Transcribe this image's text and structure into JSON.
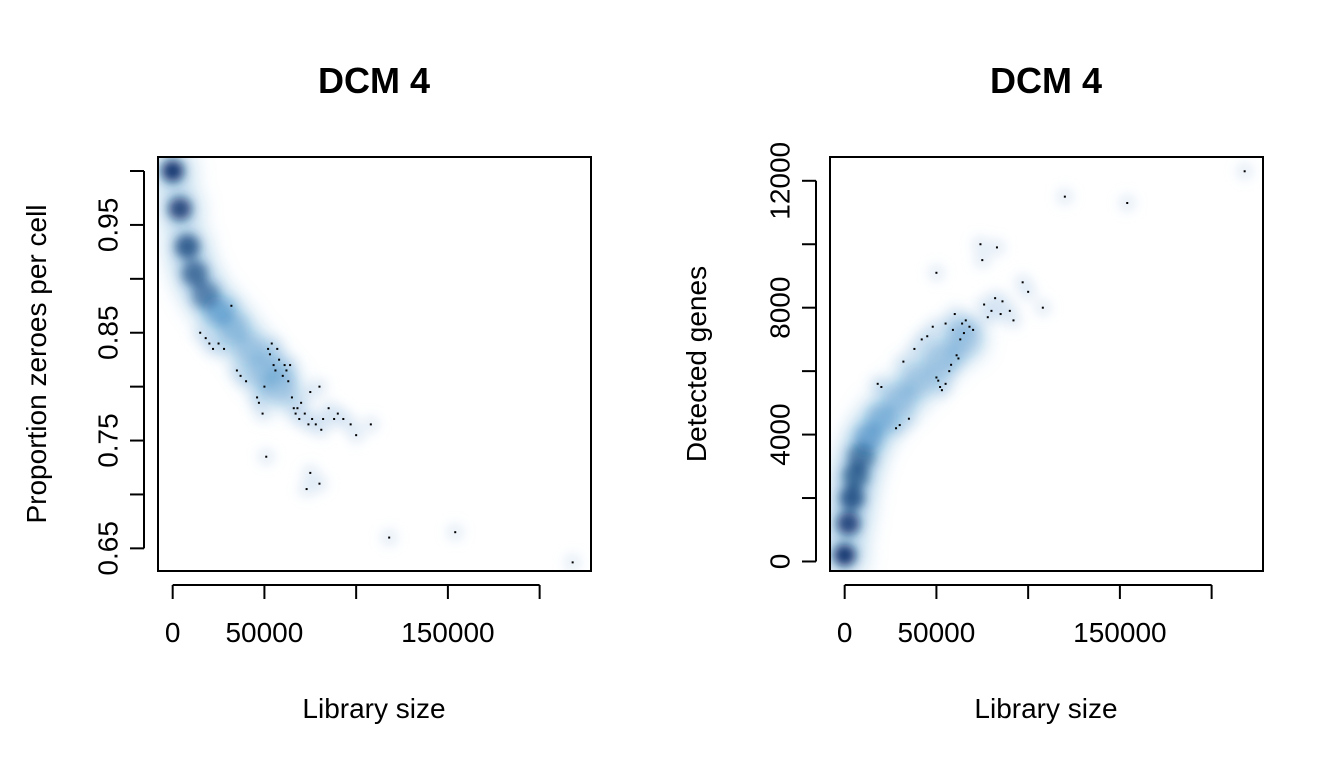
{
  "chart_data": [
    {
      "type": "scatter",
      "style": "smoothed density scatter (blue shading) with outlier points",
      "title": "DCM 4",
      "xlabel": "Library size",
      "ylabel": "Proportion zeroes per cell",
      "xlim": [
        -8000,
        228000
      ],
      "ylim": [
        0.629,
        1.013
      ],
      "xticks": [
        0,
        50000,
        100000,
        150000,
        200000
      ],
      "xtick_labels": [
        "0",
        "50000",
        "",
        "150000",
        ""
      ],
      "yticks": [
        0.65,
        0.7,
        0.75,
        0.8,
        0.85,
        0.9,
        0.95,
        1.0
      ],
      "ytick_labels": [
        "0.65",
        "",
        "0.75",
        "",
        "0.85",
        "",
        "0.95",
        ""
      ],
      "grid": false,
      "density_color": "#08306b",
      "density_core": [
        [
          0,
          1.0
        ],
        [
          4000,
          0.965
        ],
        [
          8000,
          0.93
        ],
        [
          12000,
          0.905
        ],
        [
          18000,
          0.885
        ],
        [
          25000,
          0.87
        ],
        [
          33000,
          0.855
        ],
        [
          42000,
          0.835
        ],
        [
          50000,
          0.815
        ],
        [
          58000,
          0.8
        ]
      ],
      "outliers": [
        [
          15000,
          0.85
        ],
        [
          18000,
          0.845
        ],
        [
          20000,
          0.84
        ],
        [
          22000,
          0.835
        ],
        [
          25000,
          0.84
        ],
        [
          28000,
          0.835
        ],
        [
          32000,
          0.875
        ],
        [
          35000,
          0.815
        ],
        [
          37000,
          0.81
        ],
        [
          40000,
          0.805
        ],
        [
          46000,
          0.79
        ],
        [
          47000,
          0.785
        ],
        [
          49000,
          0.775
        ],
        [
          50000,
          0.8
        ],
        [
          52000,
          0.835
        ],
        [
          53000,
          0.83
        ],
        [
          54000,
          0.84
        ],
        [
          55000,
          0.82
        ],
        [
          56000,
          0.815
        ],
        [
          57000,
          0.835
        ],
        [
          58000,
          0.825
        ],
        [
          60000,
          0.81
        ],
        [
          61000,
          0.82
        ],
        [
          62000,
          0.815
        ],
        [
          63000,
          0.805
        ],
        [
          64000,
          0.82
        ],
        [
          65000,
          0.79
        ],
        [
          66000,
          0.78
        ],
        [
          67000,
          0.775
        ],
        [
          68000,
          0.78
        ],
        [
          69000,
          0.77
        ],
        [
          70000,
          0.785
        ],
        [
          72000,
          0.775
        ],
        [
          74000,
          0.765
        ],
        [
          75000,
          0.795
        ],
        [
          76000,
          0.77
        ],
        [
          78000,
          0.765
        ],
        [
          80000,
          0.8
        ],
        [
          81000,
          0.76
        ],
        [
          82000,
          0.77
        ],
        [
          85000,
          0.78
        ],
        [
          88000,
          0.77
        ],
        [
          90000,
          0.775
        ],
        [
          93000,
          0.77
        ],
        [
          97000,
          0.765
        ],
        [
          100000,
          0.755
        ],
        [
          108000,
          0.765
        ],
        [
          51000,
          0.735
        ],
        [
          75000,
          0.72
        ],
        [
          73000,
          0.705
        ],
        [
          80000,
          0.71
        ],
        [
          118000,
          0.66
        ],
        [
          154000,
          0.665
        ],
        [
          218000,
          0.637
        ]
      ]
    },
    {
      "type": "scatter",
      "style": "smoothed density scatter (blue shading) with outlier points",
      "title": "DCM 4",
      "xlabel": "Library size",
      "ylabel": "Detected genes",
      "xlim": [
        -8000,
        228000
      ],
      "ylim": [
        -300,
        12750
      ],
      "xticks": [
        0,
        50000,
        100000,
        150000,
        200000
      ],
      "xtick_labels": [
        "0",
        "50000",
        "",
        "150000",
        ""
      ],
      "yticks": [
        0,
        2000,
        4000,
        6000,
        8000,
        10000,
        12000
      ],
      "ytick_labels": [
        "0",
        "",
        "4000",
        "",
        "8000",
        "",
        "12000"
      ],
      "grid": false,
      "density_color": "#08306b",
      "density_core": [
        [
          0,
          200
        ],
        [
          2000,
          1200
        ],
        [
          4000,
          2000
        ],
        [
          6000,
          2700
        ],
        [
          9000,
          3300
        ],
        [
          13000,
          3900
        ],
        [
          20000,
          4500
        ],
        [
          30000,
          5100
        ],
        [
          40000,
          5700
        ],
        [
          52000,
          6400
        ],
        [
          65000,
          7000
        ]
      ],
      "outliers": [
        [
          18000,
          5600
        ],
        [
          20000,
          5500
        ],
        [
          28000,
          4200
        ],
        [
          30000,
          4300
        ],
        [
          32000,
          6300
        ],
        [
          35000,
          4500
        ],
        [
          38000,
          6700
        ],
        [
          42000,
          7000
        ],
        [
          45000,
          7100
        ],
        [
          48000,
          7400
        ],
        [
          50000,
          5800
        ],
        [
          50000,
          9100
        ],
        [
          51000,
          5700
        ],
        [
          52000,
          5500
        ],
        [
          53000,
          5400
        ],
        [
          55000,
          7500
        ],
        [
          55000,
          5600
        ],
        [
          57000,
          6000
        ],
        [
          58000,
          6200
        ],
        [
          59000,
          7300
        ],
        [
          60000,
          7800
        ],
        [
          61000,
          6500
        ],
        [
          62000,
          6400
        ],
        [
          63000,
          7000
        ],
        [
          64000,
          7500
        ],
        [
          65000,
          7200
        ],
        [
          66000,
          7600
        ],
        [
          68000,
          7400
        ],
        [
          70000,
          7300
        ],
        [
          74000,
          10000
        ],
        [
          75000,
          9500
        ],
        [
          76000,
          8100
        ],
        [
          78000,
          7700
        ],
        [
          80000,
          7900
        ],
        [
          82000,
          8300
        ],
        [
          83000,
          9900
        ],
        [
          85000,
          7800
        ],
        [
          86000,
          8200
        ],
        [
          90000,
          7900
        ],
        [
          92000,
          7600
        ],
        [
          97000,
          8800
        ],
        [
          100000,
          8500
        ],
        [
          108000,
          8000
        ],
        [
          120000,
          11500
        ],
        [
          154000,
          11300
        ],
        [
          218000,
          12300
        ]
      ]
    }
  ]
}
